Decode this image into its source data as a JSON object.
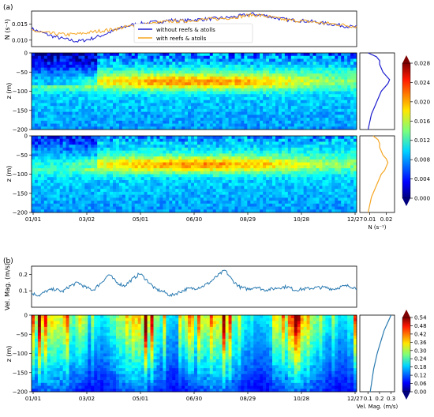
{
  "chart_data": [
    {
      "panel": "a",
      "label": "(a)",
      "type": "line",
      "ylabel": "N (s⁻¹)",
      "ylim": [
        0.008,
        0.019
      ],
      "yticks": [
        "0.010",
        "0.015"
      ],
      "x_ticks": [
        "01/01",
        "03/02",
        "05/01",
        "06/30",
        "08/29",
        "10/28",
        "12/27"
      ],
      "series": [
        {
          "name": "without reefs & atolls",
          "color": "#1f1fcf",
          "values": [
            0.0135,
            0.0122,
            0.011,
            0.0102,
            0.0096,
            0.0103,
            0.0114,
            0.0128,
            0.0141,
            0.015,
            0.0153,
            0.0157,
            0.0162,
            0.016,
            0.0163,
            0.0165,
            0.0167,
            0.017,
            0.0175,
            0.0181,
            0.0177,
            0.0169,
            0.0163,
            0.0161,
            0.0158,
            0.0153,
            0.0149,
            0.0144,
            0.0139
          ]
        },
        {
          "name": "with reefs & atolls",
          "color": "#f5a623",
          "values": [
            0.013,
            0.0123,
            0.012,
            0.0117,
            0.0119,
            0.0124,
            0.0129,
            0.0133,
            0.014,
            0.0146,
            0.015,
            0.0154,
            0.0159,
            0.0158,
            0.0162,
            0.0164,
            0.0166,
            0.0169,
            0.0173,
            0.0178,
            0.0175,
            0.0168,
            0.0162,
            0.016,
            0.0157,
            0.0153,
            0.015,
            0.0146,
            0.0142
          ]
        }
      ]
    },
    {
      "panel": "a-heatmap",
      "type": "heatmap",
      "ylabel": "z (m)",
      "ylim": [
        -200,
        0
      ],
      "yticks": [
        "0",
        "−50",
        "−100",
        "−150",
        "−200"
      ],
      "colorbar": {
        "min": 0.0,
        "max": 0.028,
        "ticks": [
          "0.028",
          "0.024",
          "0.020",
          "0.016",
          "0.012",
          "0.008",
          "0.004",
          "0.000"
        ]
      },
      "profile_without": {
        "color": "#1f1fcf",
        "z": [
          0,
          -10,
          -20,
          -30,
          -40,
          -50,
          -60,
          -70,
          -80,
          -90,
          -100,
          -120,
          -140,
          -160,
          -180,
          -200
        ],
        "N": [
          0.009,
          0.014,
          0.016,
          0.016,
          0.017,
          0.018,
          0.02,
          0.022,
          0.021,
          0.019,
          0.017,
          0.015,
          0.013,
          0.011,
          0.01,
          0.009
        ]
      },
      "profile_with": {
        "color": "#f5a623",
        "z": [
          0,
          -10,
          -20,
          -30,
          -40,
          -50,
          -60,
          -70,
          -80,
          -90,
          -100,
          -120,
          -140,
          -160,
          -180,
          -200
        ],
        "N": [
          0.012,
          0.015,
          0.016,
          0.016,
          0.017,
          0.018,
          0.02,
          0.021,
          0.02,
          0.019,
          0.017,
          0.015,
          0.013,
          0.011,
          0.01,
          0.009
        ]
      },
      "profile_xlabel": "N (s⁻¹)",
      "profile_xticks": [
        "0.01",
        "0.02"
      ]
    },
    {
      "panel": "b",
      "label": "(b)",
      "type": "line",
      "ylabel": "Vel. Mag. (m/s)",
      "ylim": [
        0.0,
        0.25
      ],
      "yticks": [
        "0.2",
        "0.1"
      ],
      "x_ticks": [
        "01/01",
        "03/02",
        "05/01",
        "06/30",
        "08/29",
        "10/28",
        "12/27"
      ],
      "series": [
        {
          "color": "#2a7ab0",
          "values": [
            0.085,
            0.072,
            0.1,
            0.11,
            0.095,
            0.13,
            0.15,
            0.12,
            0.105,
            0.15,
            0.2,
            0.15,
            0.13,
            0.17,
            0.205,
            0.16,
            0.11,
            0.095,
            0.07,
            0.09,
            0.11,
            0.115,
            0.125,
            0.15,
            0.19,
            0.225,
            0.16,
            0.12,
            0.11,
            0.125,
            0.105,
            0.11,
            0.12,
            0.125,
            0.105,
            0.11,
            0.115,
            0.12,
            0.12,
            0.11,
            0.125,
            0.13,
            0.115
          ]
        }
      ]
    },
    {
      "panel": "b-heatmap",
      "type": "heatmap",
      "ylabel": "z (m)",
      "ylim": [
        -200,
        0
      ],
      "yticks": [
        "0",
        "−50",
        "−100",
        "−150",
        "−200"
      ],
      "colorbar": {
        "min": 0.0,
        "max": 0.54,
        "ticks": [
          "0.54",
          "0.48",
          "0.42",
          "0.36",
          "0.30",
          "0.24",
          "0.18",
          "0.12",
          "0.06",
          "0.00"
        ]
      },
      "profile": {
        "color": "#2a7ab0",
        "z": [
          0,
          -20,
          -40,
          -60,
          -80,
          -100,
          -120,
          -140,
          -160,
          -180,
          -200
        ],
        "vel": [
          0.3,
          0.27,
          0.24,
          0.22,
          0.2,
          0.18,
          0.165,
          0.15,
          0.14,
          0.13,
          0.12
        ]
      },
      "profile_xlabel": "Vel. Mag. (m/s)",
      "profile_xticks": [
        "0.1",
        "0.2",
        "0.3"
      ]
    }
  ]
}
